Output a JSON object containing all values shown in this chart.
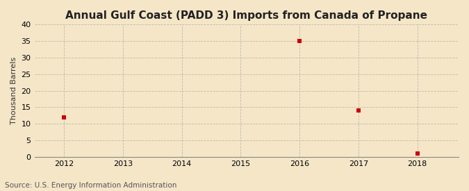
{
  "title": "Annual Gulf Coast (PADD 3) Imports from Canada of Propane",
  "ylabel": "Thousand Barrels",
  "source": "Source: U.S. Energy Information Administration",
  "background_color": "#f5e6c8",
  "plot_bg_color": "#f5e6c8",
  "marker_color": "#cc0000",
  "marker_size": 4,
  "marker_style": "s",
  "years": [
    2012,
    2013,
    2014,
    2015,
    2016,
    2017,
    2018
  ],
  "values": [
    12,
    null,
    null,
    null,
    35,
    14,
    1
  ],
  "xlim": [
    2011.5,
    2018.7
  ],
  "ylim": [
    0,
    40
  ],
  "yticks": [
    0,
    5,
    10,
    15,
    20,
    25,
    30,
    35,
    40
  ],
  "xticks": [
    2012,
    2013,
    2014,
    2015,
    2016,
    2017,
    2018
  ],
  "title_fontsize": 11,
  "label_fontsize": 8,
  "tick_fontsize": 8,
  "source_fontsize": 7.5
}
